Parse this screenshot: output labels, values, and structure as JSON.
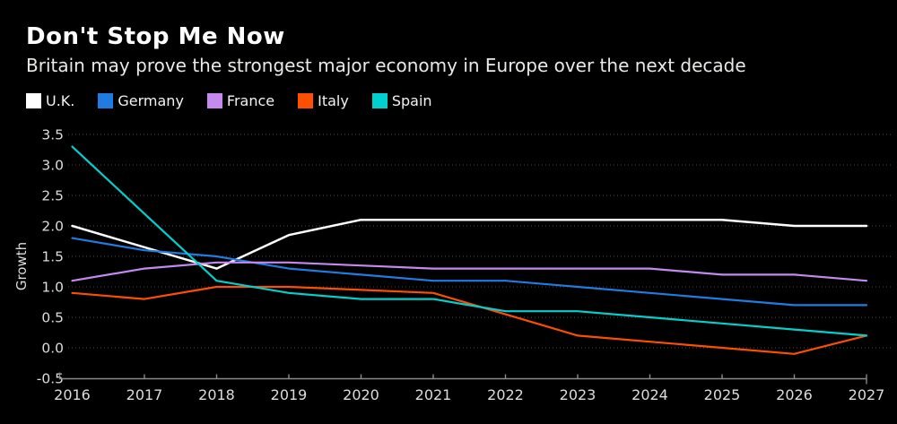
{
  "header": {
    "title": "Don't Stop Me Now",
    "subtitle": "Britain may prove the strongest major economy in Europe over the next decade"
  },
  "chart_data": {
    "type": "line",
    "title": "Don't Stop Me Now",
    "subtitle": "Britain may prove the strongest major economy in Europe over the next decade",
    "x": [
      2016,
      2017,
      2018,
      2019,
      2020,
      2021,
      2022,
      2023,
      2024,
      2025,
      2026,
      2027
    ],
    "series": [
      {
        "name": "U.K.",
        "color": "#ffffff",
        "values": [
          2.0,
          1.65,
          1.3,
          1.85,
          2.1,
          2.1,
          2.1,
          2.1,
          2.1,
          2.1,
          2.0,
          2.0
        ]
      },
      {
        "name": "Germany",
        "color": "#1e7ce2",
        "values": [
          1.8,
          1.6,
          1.5,
          1.3,
          1.2,
          1.1,
          1.1,
          1.0,
          0.9,
          0.8,
          0.7,
          0.7
        ]
      },
      {
        "name": "France",
        "color": "#c689f0",
        "values": [
          1.1,
          1.3,
          1.4,
          1.4,
          1.35,
          1.3,
          1.3,
          1.3,
          1.3,
          1.2,
          1.2,
          1.1
        ]
      },
      {
        "name": "Italy",
        "color": "#fc4f00",
        "values": [
          0.9,
          0.8,
          1.0,
          1.0,
          0.95,
          0.9,
          0.55,
          0.2,
          0.1,
          0.0,
          -0.1,
          0.2
        ]
      },
      {
        "name": "Spain",
        "color": "#00d0ce",
        "values": [
          3.3,
          2.2,
          1.1,
          0.9,
          0.8,
          0.8,
          0.6,
          0.6,
          0.5,
          0.4,
          0.3,
          0.2
        ]
      }
    ],
    "xlabel": "",
    "ylabel": "Growth",
    "ylim": [
      -0.5,
      3.5
    ],
    "yticks": [
      3.5,
      3.0,
      2.5,
      2.0,
      1.5,
      1.0,
      0.5,
      0.0,
      -0.5
    ],
    "grid": "horizontal-dotted",
    "legend_position": "top-left",
    "background": "#000000"
  },
  "colors": {
    "background": "#000000",
    "grid": "#4a4a4a",
    "axis": "#8a8a8a",
    "tick_text": "#dcdcdc",
    "title_text": "#ffffff",
    "subtitle_text": "#e9e9e7"
  }
}
